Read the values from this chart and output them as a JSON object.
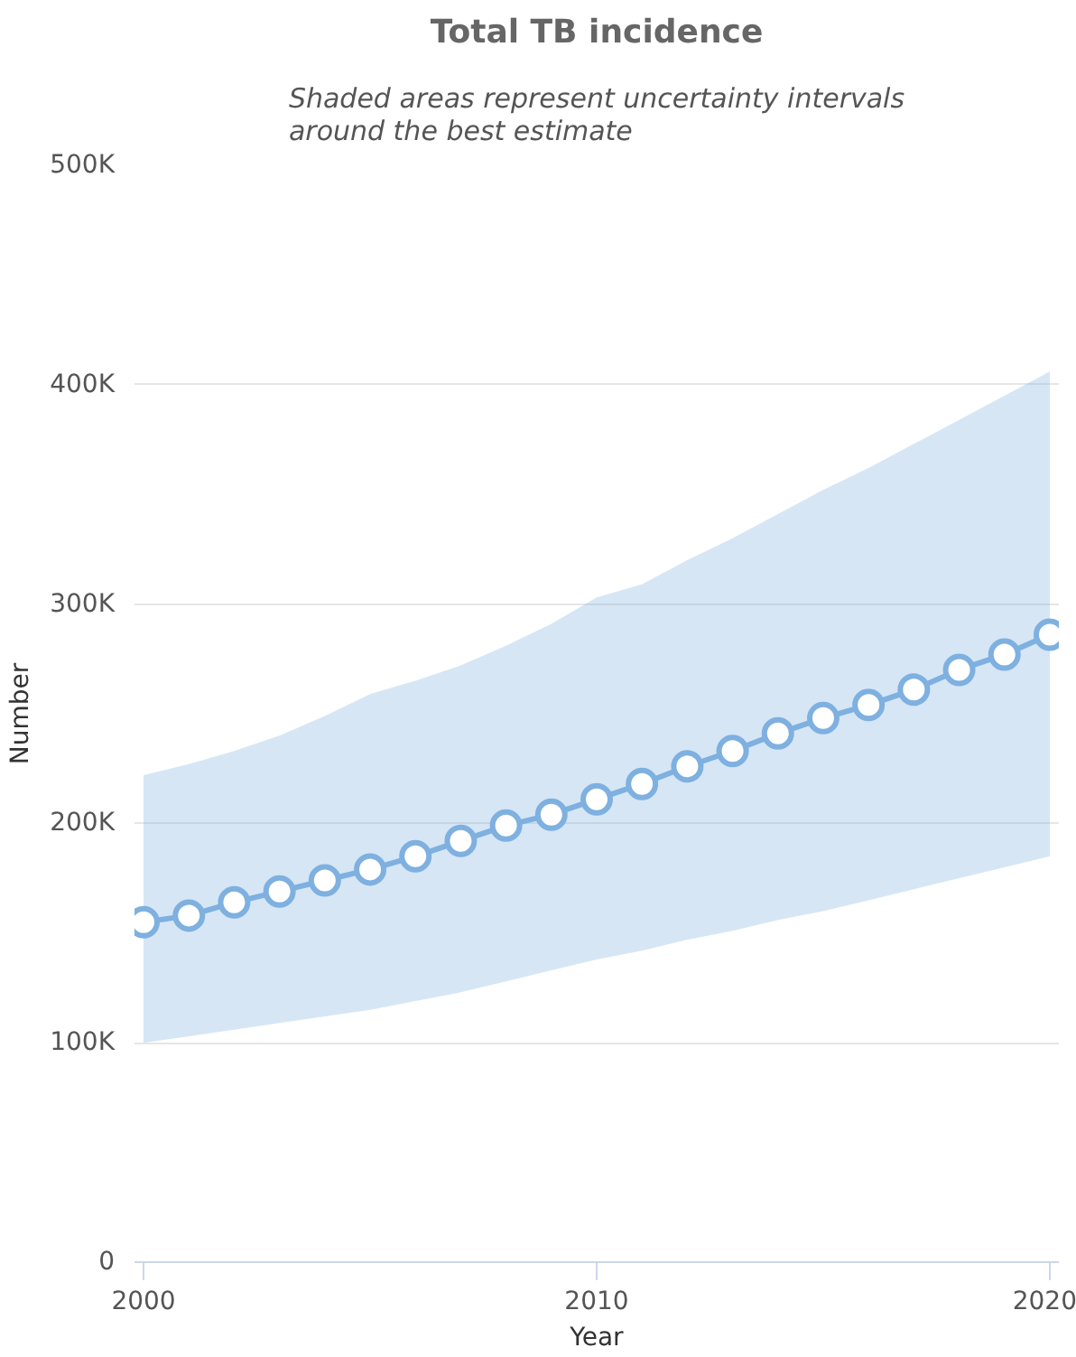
{
  "chart_data": {
    "type": "line",
    "title": "Total TB incidence",
    "subtitle": "Shaded areas represent uncertainty intervals around the best estimate",
    "xlabel": "Year",
    "ylabel": "Number",
    "x": [
      2000,
      2001,
      2002,
      2003,
      2004,
      2005,
      2006,
      2007,
      2008,
      2009,
      2010,
      2011,
      2012,
      2013,
      2014,
      2015,
      2016,
      2017,
      2018,
      2019,
      2020
    ],
    "series": [
      {
        "color": "#7eb0e0",
        "values": [
          155000,
          158000,
          164000,
          169000,
          174000,
          179000,
          185000,
          192000,
          199000,
          204000,
          211000,
          218000,
          226000,
          233000,
          241000,
          248000,
          254000,
          261000,
          270000,
          277000,
          286000
        ],
        "upper": [
          222000,
          227000,
          233000,
          240000,
          249000,
          259000,
          265000,
          272000,
          281000,
          291000,
          303000,
          309000,
          320000,
          330000,
          341000,
          352000,
          362000,
          373000,
          384000,
          395000,
          406000
        ],
        "lower": [
          100000,
          103000,
          106000,
          109000,
          112000,
          115000,
          119000,
          123000,
          128000,
          133000,
          138000,
          142000,
          147000,
          151000,
          156000,
          160000,
          165000,
          170000,
          175000,
          180000,
          185000
        ]
      }
    ],
    "xlim": [
      1999.8,
      2020.2
    ],
    "xticks": [
      2000,
      2010,
      2020
    ],
    "ylim": [
      0,
      500000
    ],
    "yticks": [
      0,
      {
        "value": 100000,
        "label": "100K"
      },
      {
        "value": 200000,
        "label": "200K"
      },
      {
        "value": 300000,
        "label": "300K"
      },
      {
        "value": 400000,
        "label": "400K"
      },
      {
        "value": 500000,
        "label": "500K"
      }
    ],
    "grid": "y",
    "marker": "circle",
    "line_style": "solid"
  }
}
